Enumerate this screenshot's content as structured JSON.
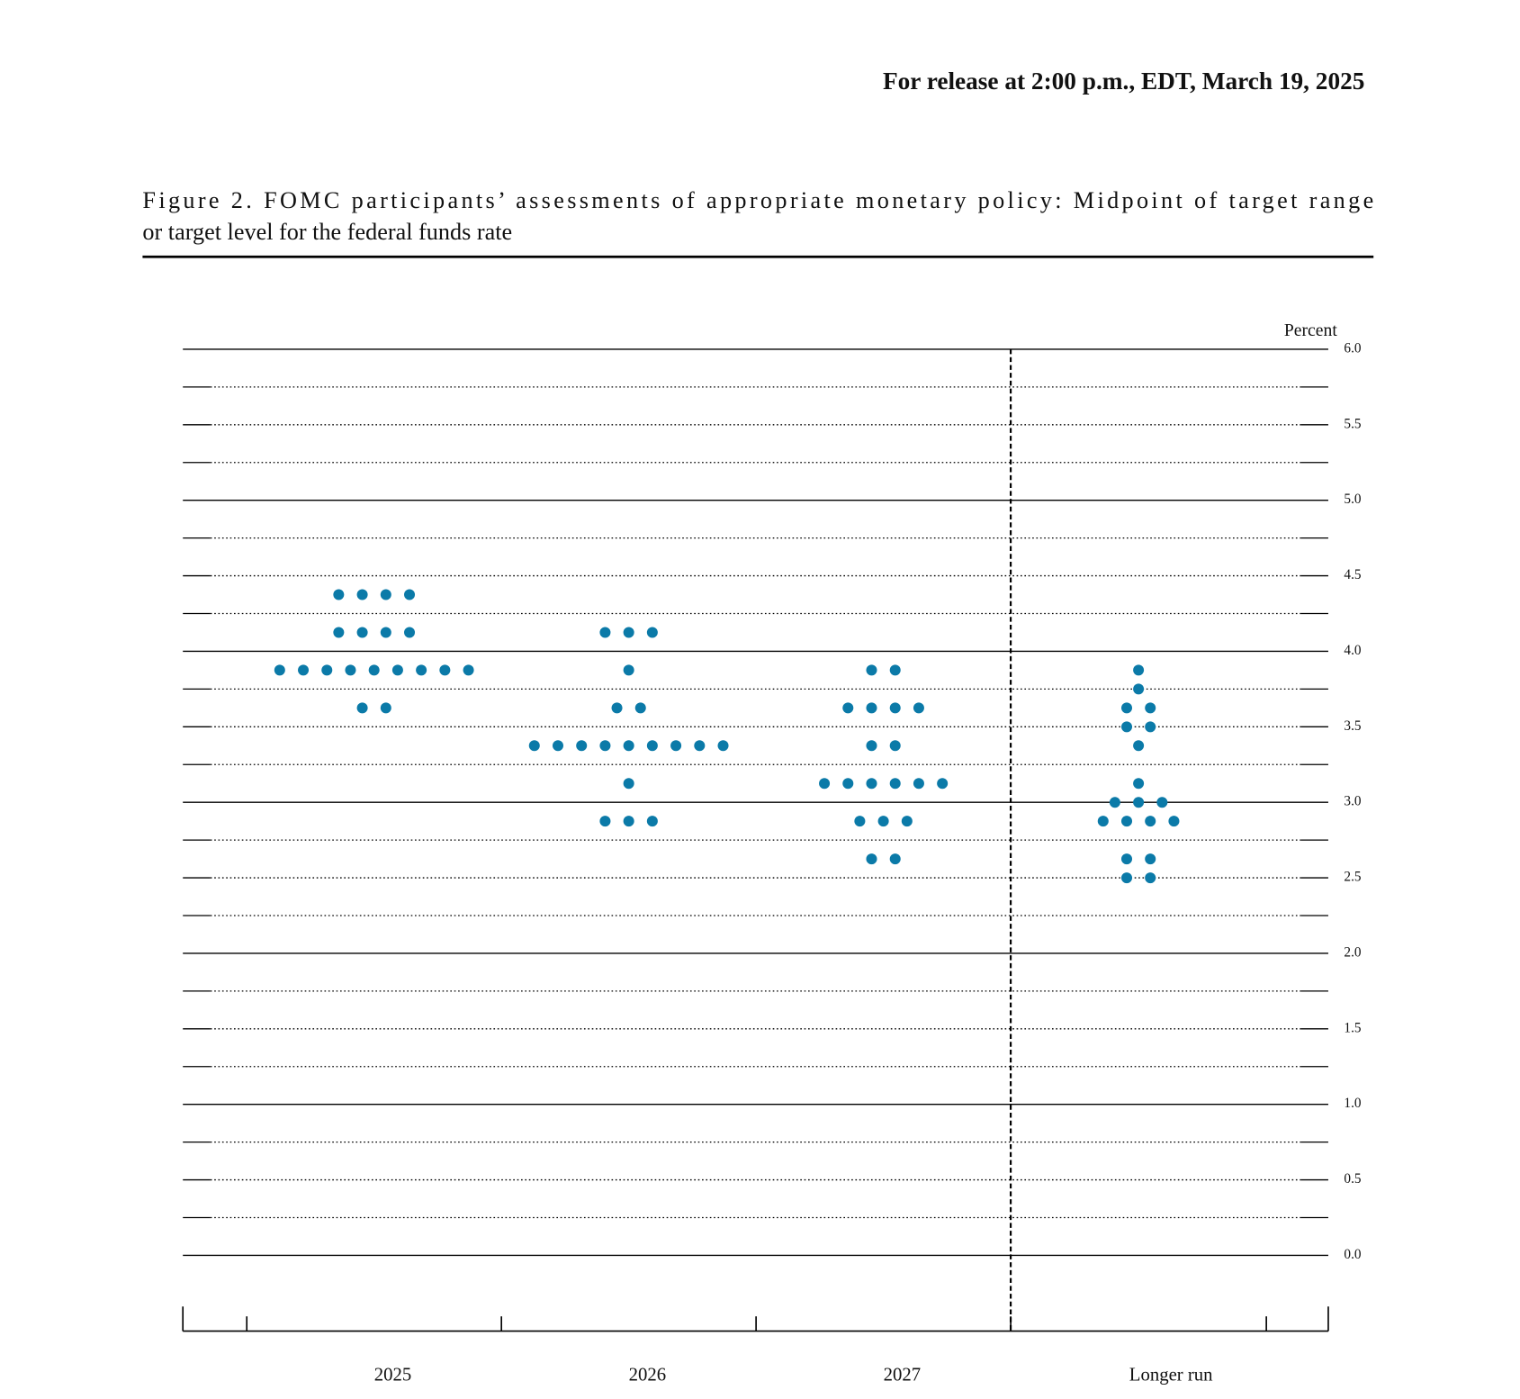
{
  "header": "For release at 2:00 p.m., EDT, March 19, 2025",
  "chart_data": {
    "type": "dot",
    "title_lines": [
      "Figure 2.  FOMC participants’ assessments of appropriate monetary policy:  Midpoint of target range",
      "or target level for the federal funds rate"
    ],
    "y_label": "Percent",
    "color": "#0b7aa8",
    "ylim": [
      0,
      6
    ],
    "yticks": [
      {
        "value": 0,
        "label": "0.0"
      },
      0.5,
      {
        "value": 1,
        "label": "1.0"
      },
      1.5,
      {
        "value": 2,
        "label": "2.0"
      },
      2.5,
      {
        "value": 3,
        "label": "3.0"
      },
      3.5,
      {
        "value": 4,
        "label": "4.0"
      },
      4.5,
      {
        "value": 5,
        "label": "5.0"
      },
      5.5,
      {
        "value": 6,
        "label": "6.0"
      }
    ],
    "ygrid": [
      0,
      0.25,
      0.5,
      0.75,
      1,
      1.25,
      1.5,
      1.75,
      2,
      2.25,
      2.5,
      2.75,
      3,
      3.25,
      3.5,
      3.75,
      4,
      4.25,
      4.5,
      4.75,
      5,
      5.25,
      5.5,
      5.75,
      6
    ],
    "categories": [
      "2025",
      "2026",
      "2027",
      "Longer run"
    ],
    "dots": [
      {
        "rates": [
          4.375,
          4.125,
          3.875,
          3.625
        ],
        "counts": [
          4,
          4,
          9,
          2
        ]
      },
      {
        "rates": [
          4.125,
          3.875,
          3.625,
          3.375,
          3.125,
          2.875
        ],
        "counts": [
          3,
          1,
          2,
          9,
          1,
          3
        ]
      },
      {
        "rates": [
          3.875,
          3.625,
          3.375,
          3.125,
          2.875,
          2.625
        ],
        "counts": [
          2,
          4,
          2,
          6,
          3,
          2
        ]
      },
      {
        "rates": [
          3.875,
          3.75,
          3.625,
          3.5,
          3.375,
          3.125,
          3.0,
          2.875,
          2.625,
          2.5
        ],
        "counts": [
          1,
          1,
          2,
          2,
          1,
          1,
          3,
          4,
          2,
          2
        ]
      }
    ]
  }
}
